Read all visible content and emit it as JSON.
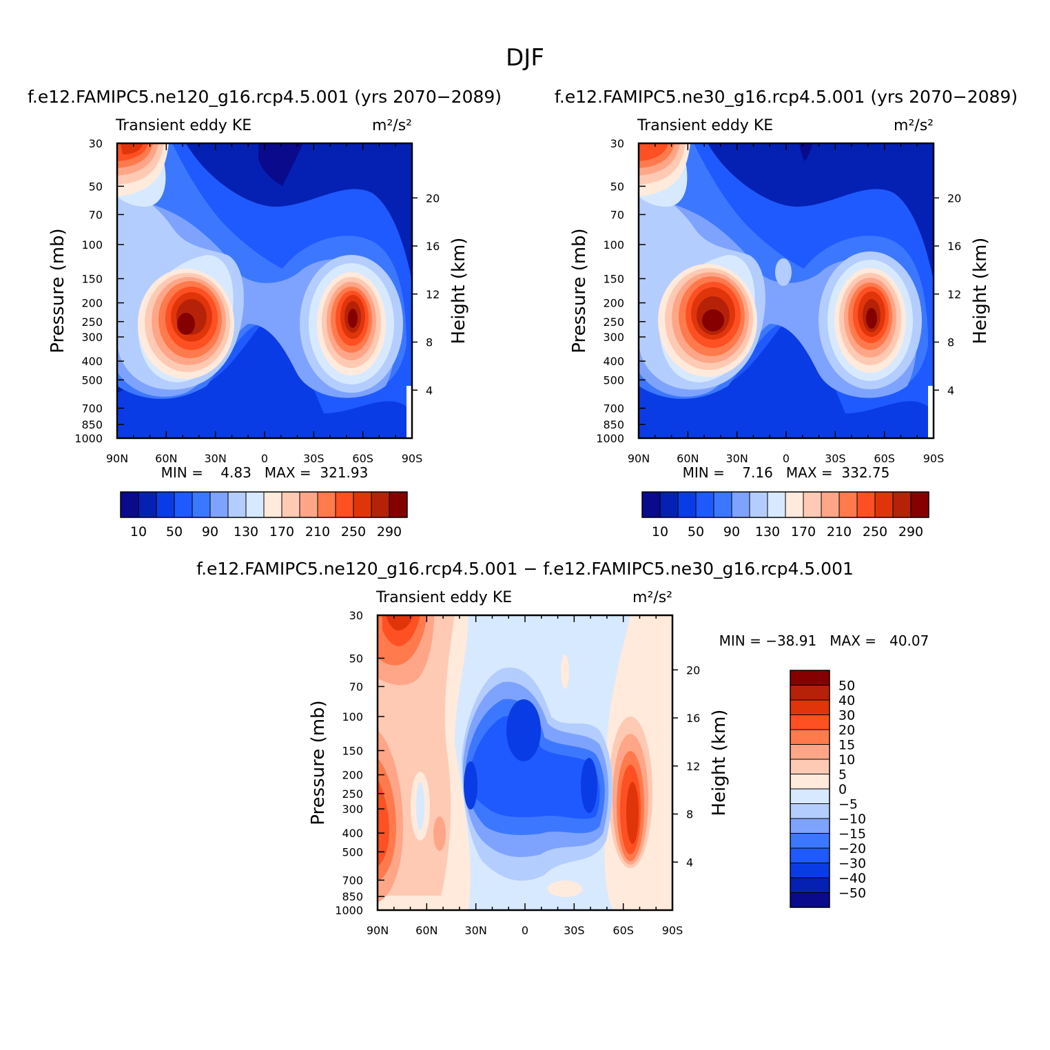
{
  "title": "DJF",
  "chart_data": [
    {
      "type": "heatmap",
      "header": "f.e12.FAMIPC5.ne120_g16.rcp4.5.001 (yrs 2070−2089)",
      "left_label": "Transient eddy KE",
      "units": "m²/s²",
      "ylabel": "Pressure (mb)",
      "y2label": "Height (km)",
      "x_ticks": [
        "90N",
        "60N",
        "30N",
        "0",
        "30S",
        "60S",
        "90S"
      ],
      "xlim": [
        90,
        -90
      ],
      "y_ticks": [
        "30",
        "50",
        "70",
        "100",
        "150",
        "200",
        "250",
        "300",
        "400",
        "500",
        "700",
        "850",
        "1000"
      ],
      "ylim_mb": [
        1000,
        30
      ],
      "y2_ticks": [
        "4",
        "8",
        "12",
        "16",
        "20"
      ],
      "stats_text": "MIN =    4.83   MAX =  321.93",
      "min": 4.83,
      "max": 321.93,
      "colorbar_labels": [
        "10",
        "50",
        "90",
        "130",
        "170",
        "210",
        "250",
        "290"
      ],
      "levels": [
        10,
        30,
        50,
        70,
        90,
        110,
        130,
        150,
        170,
        190,
        210,
        230,
        250,
        270,
        290
      ]
    },
    {
      "type": "heatmap",
      "header": "f.e12.FAMIPC5.ne30_g16.rcp4.5.001 (yrs 2070−2089)",
      "left_label": "Transient eddy KE",
      "units": "m²/s²",
      "ylabel": "Pressure (mb)",
      "y2label": "Height (km)",
      "x_ticks": [
        "90N",
        "60N",
        "30N",
        "0",
        "30S",
        "60S",
        "90S"
      ],
      "xlim": [
        90,
        -90
      ],
      "y_ticks": [
        "30",
        "50",
        "70",
        "100",
        "150",
        "200",
        "250",
        "300",
        "400",
        "500",
        "700",
        "850",
        "1000"
      ],
      "ylim_mb": [
        1000,
        30
      ],
      "y2_ticks": [
        "4",
        "8",
        "12",
        "16",
        "20"
      ],
      "stats_text": "MIN =    7.16   MAX =  332.75",
      "min": 7.16,
      "max": 332.75,
      "colorbar_labels": [
        "10",
        "50",
        "90",
        "130",
        "170",
        "210",
        "250",
        "290"
      ],
      "levels": [
        10,
        30,
        50,
        70,
        90,
        110,
        130,
        150,
        170,
        190,
        210,
        230,
        250,
        270,
        290
      ]
    },
    {
      "type": "heatmap",
      "header": "f.e12.FAMIPC5.ne120_g16.rcp4.5.001 − f.e12.FAMIPC5.ne30_g16.rcp4.5.001",
      "left_label": "Transient eddy KE",
      "units": "m²/s²",
      "ylabel": "Pressure (mb)",
      "y2label": "Height (km)",
      "x_ticks": [
        "90N",
        "60N",
        "30N",
        "0",
        "30S",
        "60S",
        "90S"
      ],
      "xlim": [
        90,
        -90
      ],
      "y_ticks": [
        "30",
        "50",
        "70",
        "100",
        "150",
        "200",
        "250",
        "300",
        "400",
        "500",
        "700",
        "850",
        "1000"
      ],
      "ylim_mb": [
        1000,
        30
      ],
      "y2_ticks": [
        "4",
        "8",
        "12",
        "16",
        "20"
      ],
      "stats_text": "MIN = −38.91   MAX =   40.07",
      "min": -38.91,
      "max": 40.07,
      "colorbar_labels": [
        "50",
        "40",
        "30",
        "20",
        "15",
        "10",
        "5",
        "0",
        "−5",
        "−10",
        "−15",
        "−20",
        "−30",
        "−40",
        "−50"
      ],
      "levels": [
        -50,
        -40,
        -30,
        -20,
        -15,
        -10,
        -5,
        0,
        5,
        10,
        15,
        20,
        30,
        40,
        50
      ]
    }
  ],
  "colors": {
    "abs_scale": [
      "#0a0a8c",
      "#0421b4",
      "#0a3ce6",
      "#1e5aff",
      "#3c78ff",
      "#7ea3ff",
      "#b4cdff",
      "#d7e9ff",
      "#ffeadc",
      "#ffcab3",
      "#ffa688",
      "#ff7a4c",
      "#fe5022",
      "#e0350a",
      "#b52208",
      "#850000"
    ],
    "diff_scale": [
      "#850000",
      "#b52208",
      "#e0350a",
      "#fe5022",
      "#ff7a4c",
      "#ffa688",
      "#ffcab3",
      "#ffeadc",
      "#d7e9ff",
      "#b4cdff",
      "#7ea3ff",
      "#3c78ff",
      "#1e5aff",
      "#0a3ce6",
      "#0421b4",
      "#0a0a8c"
    ]
  }
}
